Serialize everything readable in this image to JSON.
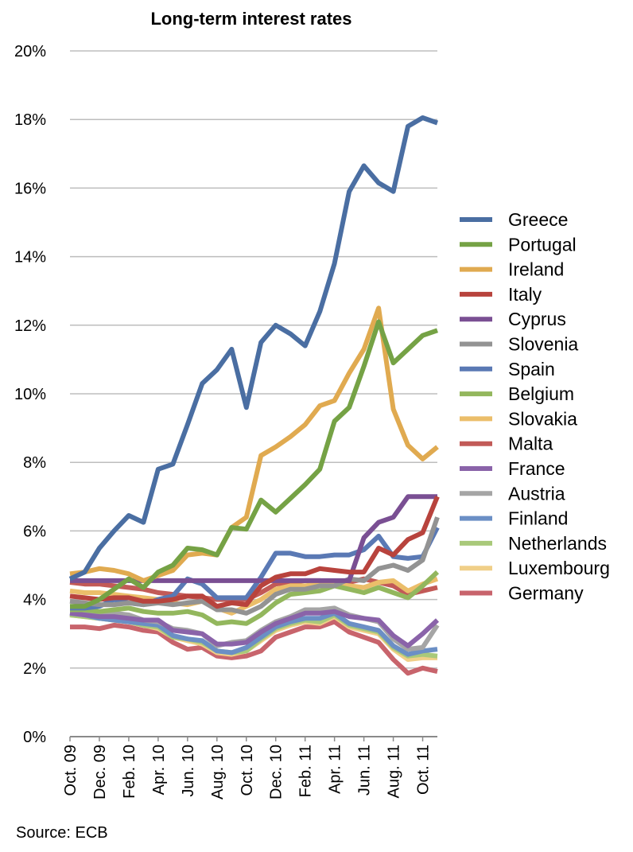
{
  "chart_data": {
    "type": "line",
    "title": "Long-term interest rates",
    "source": "Source: ECB",
    "ylim": [
      0,
      20
    ],
    "y_ticks": [
      "0%",
      "2%",
      "4%",
      "6%",
      "8%",
      "10%",
      "12%",
      "14%",
      "16%",
      "18%",
      "20%"
    ],
    "x_ticks": [
      "Oct. 09",
      "Dec. 09",
      "Feb. 10",
      "Apr. 10",
      "Jun. 10",
      "Aug. 10",
      "Oct. 10",
      "Dec. 10",
      "Feb. 11",
      "Apr. 11",
      "Jun. 11",
      "Aug. 11",
      "Oct. 11"
    ],
    "x": [
      "Oct. 09",
      "Nov. 09",
      "Dec. 09",
      "Jan. 10",
      "Feb. 10",
      "Mar. 10",
      "Apr. 10",
      "May 10",
      "Jun. 10",
      "Jul. 10",
      "Aug. 10",
      "Sep. 10",
      "Oct. 10",
      "Nov. 10",
      "Dec. 10",
      "Jan. 11",
      "Feb. 11",
      "Mar. 11",
      "Apr. 11",
      "May 11",
      "Jun. 11",
      "Jul. 11",
      "Aug. 11",
      "Sep. 11",
      "Oct. 11",
      "Nov. 11"
    ],
    "grid": true,
    "legend": "right",
    "series": [
      {
        "name": "Greece",
        "color": "#4a6ea2",
        "values": [
          4.6,
          4.8,
          5.5,
          6.0,
          6.45,
          6.25,
          7.8,
          7.95,
          9.1,
          10.3,
          10.7,
          11.3,
          9.6,
          11.5,
          12.0,
          11.75,
          11.4,
          12.4,
          13.8,
          15.9,
          16.65,
          16.15,
          15.9,
          17.8,
          18.05,
          17.9
        ]
      },
      {
        "name": "Portugal",
        "color": "#75a245",
        "values": [
          3.8,
          3.8,
          4.0,
          4.3,
          4.6,
          4.35,
          4.8,
          5.0,
          5.5,
          5.45,
          5.3,
          6.1,
          6.05,
          6.9,
          6.55,
          6.95,
          7.35,
          7.8,
          9.2,
          9.6,
          10.8,
          12.1,
          10.9,
          11.3,
          11.7,
          11.85
        ]
      },
      {
        "name": "Ireland",
        "color": "#e0aa50",
        "values": [
          4.75,
          4.8,
          4.9,
          4.85,
          4.75,
          4.55,
          4.7,
          4.85,
          5.3,
          5.35,
          5.3,
          6.1,
          6.4,
          8.2,
          8.45,
          8.75,
          9.1,
          9.65,
          9.8,
          10.6,
          11.3,
          12.5,
          9.55,
          8.5,
          8.1,
          8.45
        ]
      },
      {
        "name": "Italy",
        "color": "#b8433d",
        "values": [
          4.1,
          4.05,
          4.0,
          4.05,
          4.05,
          3.95,
          3.95,
          4.0,
          4.1,
          4.1,
          3.8,
          3.9,
          3.85,
          4.4,
          4.65,
          4.75,
          4.75,
          4.9,
          4.85,
          4.8,
          4.8,
          5.5,
          5.3,
          5.75,
          5.95,
          7.0
        ]
      },
      {
        "name": "Cyprus",
        "color": "#7a4f93",
        "values": [
          4.55,
          4.55,
          4.55,
          4.55,
          4.55,
          4.55,
          4.55,
          4.55,
          4.55,
          4.55,
          4.55,
          4.55,
          4.55,
          4.55,
          4.55,
          4.55,
          4.55,
          4.55,
          4.55,
          4.55,
          5.8,
          6.25,
          6.4,
          7.0,
          7.0,
          7.0
        ]
      },
      {
        "name": "Slovenia",
        "color": "#939393",
        "values": [
          3.95,
          3.9,
          3.85,
          3.85,
          3.9,
          3.85,
          3.9,
          3.85,
          3.9,
          3.95,
          3.7,
          3.7,
          3.6,
          3.8,
          4.15,
          4.3,
          4.3,
          4.4,
          4.4,
          4.6,
          4.55,
          4.9,
          5.0,
          4.85,
          5.15,
          6.4
        ]
      },
      {
        "name": "Spain",
        "color": "#5a79b4",
        "values": [
          3.75,
          3.75,
          3.8,
          4.0,
          3.9,
          3.85,
          4.0,
          4.1,
          4.6,
          4.45,
          4.05,
          4.05,
          4.05,
          4.65,
          5.35,
          5.35,
          5.25,
          5.25,
          5.3,
          5.3,
          5.45,
          5.85,
          5.25,
          5.2,
          5.25,
          6.1
        ]
      },
      {
        "name": "Belgium",
        "color": "#93b75d",
        "values": [
          3.7,
          3.7,
          3.65,
          3.7,
          3.75,
          3.65,
          3.6,
          3.6,
          3.65,
          3.55,
          3.3,
          3.35,
          3.3,
          3.55,
          3.9,
          4.15,
          4.2,
          4.25,
          4.4,
          4.3,
          4.2,
          4.35,
          4.2,
          4.05,
          4.4,
          4.8
        ]
      },
      {
        "name": "Slovakia",
        "color": "#ebbe6a",
        "values": [
          4.25,
          4.2,
          4.2,
          4.15,
          4.1,
          4.05,
          4.0,
          3.9,
          3.85,
          3.95,
          3.75,
          3.6,
          3.8,
          4.0,
          4.3,
          4.4,
          4.4,
          4.45,
          4.45,
          4.4,
          4.35,
          4.5,
          4.55,
          4.25,
          4.45,
          4.6
        ]
      },
      {
        "name": "Malta",
        "color": "#c25a57",
        "values": [
          4.5,
          4.45,
          4.45,
          4.4,
          4.35,
          4.3,
          4.2,
          4.15,
          4.1,
          4.05,
          4.0,
          4.0,
          4.0,
          4.2,
          4.45,
          4.5,
          4.55,
          4.55,
          4.5,
          4.5,
          4.6,
          4.5,
          4.4,
          4.15,
          4.25,
          4.35
        ]
      },
      {
        "name": "France",
        "color": "#8a63a9",
        "values": [
          3.6,
          3.55,
          3.5,
          3.5,
          3.45,
          3.4,
          3.4,
          3.1,
          3.05,
          3.0,
          2.7,
          2.7,
          2.75,
          3.05,
          3.3,
          3.45,
          3.6,
          3.6,
          3.65,
          3.5,
          3.45,
          3.4,
          2.95,
          2.65,
          3.0,
          3.4
        ]
      },
      {
        "name": "Austria",
        "color": "#a5a5a5",
        "values": [
          3.65,
          3.65,
          3.6,
          3.6,
          3.55,
          3.4,
          3.35,
          3.15,
          3.1,
          3.0,
          2.65,
          2.75,
          2.8,
          3.1,
          3.35,
          3.5,
          3.7,
          3.7,
          3.75,
          3.55,
          3.45,
          3.35,
          2.85,
          2.55,
          2.6,
          3.25
        ]
      },
      {
        "name": "Finland",
        "color": "#6b8fc5",
        "values": [
          3.6,
          3.55,
          3.45,
          3.4,
          3.35,
          3.3,
          3.25,
          2.95,
          2.85,
          2.8,
          2.5,
          2.45,
          2.6,
          2.9,
          3.2,
          3.35,
          3.45,
          3.45,
          3.6,
          3.3,
          3.2,
          3.1,
          2.65,
          2.4,
          2.5,
          2.55
        ]
      },
      {
        "name": "Netherlands",
        "color": "#a9c97a",
        "values": [
          3.55,
          3.5,
          3.45,
          3.4,
          3.35,
          3.25,
          3.2,
          2.9,
          2.85,
          2.75,
          2.5,
          2.45,
          2.5,
          2.85,
          3.15,
          3.3,
          3.4,
          3.35,
          3.55,
          3.25,
          3.15,
          3.05,
          2.6,
          2.35,
          2.4,
          2.35
        ]
      },
      {
        "name": "Luxembourg",
        "color": "#f0cf88",
        "values": [
          3.55,
          3.5,
          3.45,
          3.4,
          3.35,
          3.25,
          3.15,
          2.9,
          2.8,
          2.7,
          2.45,
          2.4,
          2.5,
          2.8,
          3.1,
          3.25,
          3.35,
          3.3,
          3.5,
          3.2,
          3.1,
          3.0,
          2.55,
          2.25,
          2.3,
          2.3
        ]
      },
      {
        "name": "Germany",
        "color": "#c8646c",
        "values": [
          3.2,
          3.2,
          3.15,
          3.25,
          3.2,
          3.1,
          3.05,
          2.75,
          2.55,
          2.6,
          2.35,
          2.3,
          2.35,
          2.5,
          2.9,
          3.05,
          3.2,
          3.2,
          3.35,
          3.05,
          2.9,
          2.75,
          2.25,
          1.85,
          2.0,
          1.9
        ]
      }
    ]
  }
}
